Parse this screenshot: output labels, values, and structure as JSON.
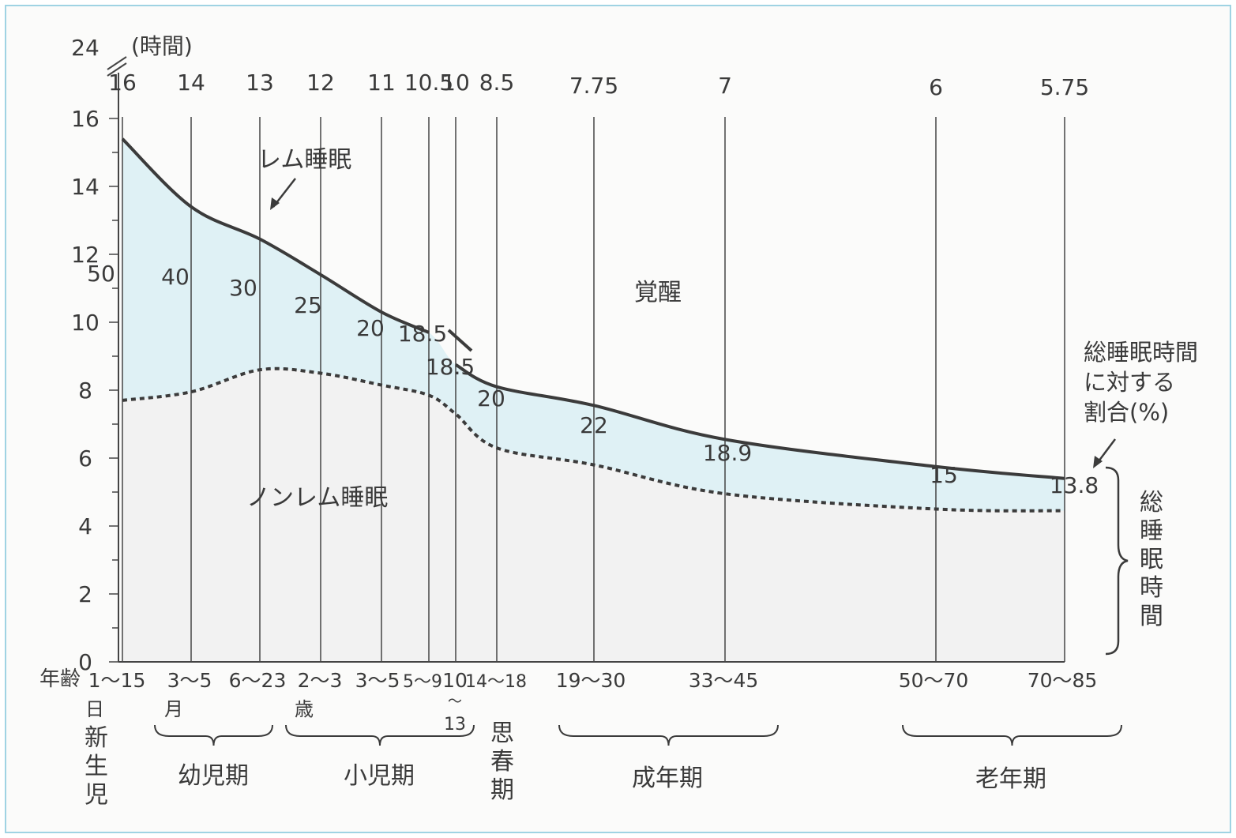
{
  "chart_data": {
    "type": "area",
    "y_unit_label": "(時間)",
    "y_ticks": [
      0,
      2,
      4,
      6,
      8,
      10,
      12,
      14,
      16
    ],
    "y_break_label": "24",
    "ylim": [
      0,
      16
    ],
    "age_label": "年齢",
    "groups": [
      {
        "age": "1〜15",
        "unit": "日",
        "total_sleep": 16,
        "rem_pct": "50",
        "total_label": "16",
        "rem_top": 15.4,
        "nonrem_top": 7.7
      },
      {
        "age": "3〜5",
        "unit": "月",
        "total_sleep": 14,
        "rem_pct": "40",
        "total_label": "14",
        "rem_top": 13.4,
        "nonrem_top": 7.95
      },
      {
        "age": "6〜23",
        "unit": "",
        "total_sleep": 13,
        "rem_pct": "30",
        "total_label": "13",
        "rem_top": 12.45,
        "nonrem_top": 8.6
      },
      {
        "age": "2〜3",
        "unit": "歳",
        "total_sleep": 12,
        "rem_pct": "25",
        "total_label": "12",
        "rem_top": 11.4,
        "nonrem_top": 8.5
      },
      {
        "age": "3〜5",
        "unit": "",
        "total_sleep": 11,
        "rem_pct": "20",
        "total_label": "11",
        "rem_top": 10.3,
        "nonrem_top": 8.15
      },
      {
        "age": "5〜9",
        "unit": "",
        "total_sleep": 10.5,
        "rem_pct": "18.5",
        "total_label": "10.5",
        "rem_top": 9.7,
        "nonrem_top": 7.85
      },
      {
        "age": "10",
        "age_sub": "13",
        "unit": "",
        "total_sleep": 10,
        "rem_pct": "18.5",
        "total_label": "10",
        "rem_top": 8.75,
        "nonrem_top": 7.3
      },
      {
        "age": "14〜18",
        "unit": "",
        "total_sleep": 8.5,
        "rem_pct": "20",
        "total_label": "8.5",
        "rem_top": 8.1,
        "nonrem_top": 6.3
      },
      {
        "age": "19〜30",
        "unit": "",
        "total_sleep": 7.75,
        "rem_pct": "22",
        "total_label": "7.75",
        "rem_top": 7.55,
        "nonrem_top": 5.8
      },
      {
        "age": "33〜45",
        "unit": "",
        "total_sleep": 7,
        "rem_pct": "18.9",
        "total_label": "7",
        "rem_top": 6.55,
        "nonrem_top": 4.95
      },
      {
        "age": "50〜70",
        "unit": "",
        "total_sleep": 6,
        "rem_pct": "15",
        "total_label": "6",
        "rem_top": 5.75,
        "nonrem_top": 4.5
      },
      {
        "age": "70〜85",
        "unit": "",
        "total_sleep": 5.75,
        "rem_pct": "13.8",
        "total_label": "5.75",
        "rem_top": 5.4,
        "nonrem_top": 4.45
      }
    ],
    "periods": [
      {
        "label": "新生児",
        "vertical": true
      },
      {
        "label": "幼児期"
      },
      {
        "label": "小児期"
      },
      {
        "label": "思春期",
        "vertical": true
      },
      {
        "label": "成年期"
      },
      {
        "label": "老年期"
      }
    ],
    "annotations": {
      "rem": "レム睡眠",
      "nonrem": "ノンレム睡眠",
      "awake": "覚醒",
      "ratio_label": [
        "総睡眠時間",
        "に対する",
        "割合(%)"
      ],
      "total_sleep_vertical": "総睡眠時間"
    },
    "colors": {
      "rem_fill": "#dff1f5",
      "nonrem_fill": "#f2f2f2",
      "line": "#3b3b3b",
      "grid": "#444444"
    }
  }
}
